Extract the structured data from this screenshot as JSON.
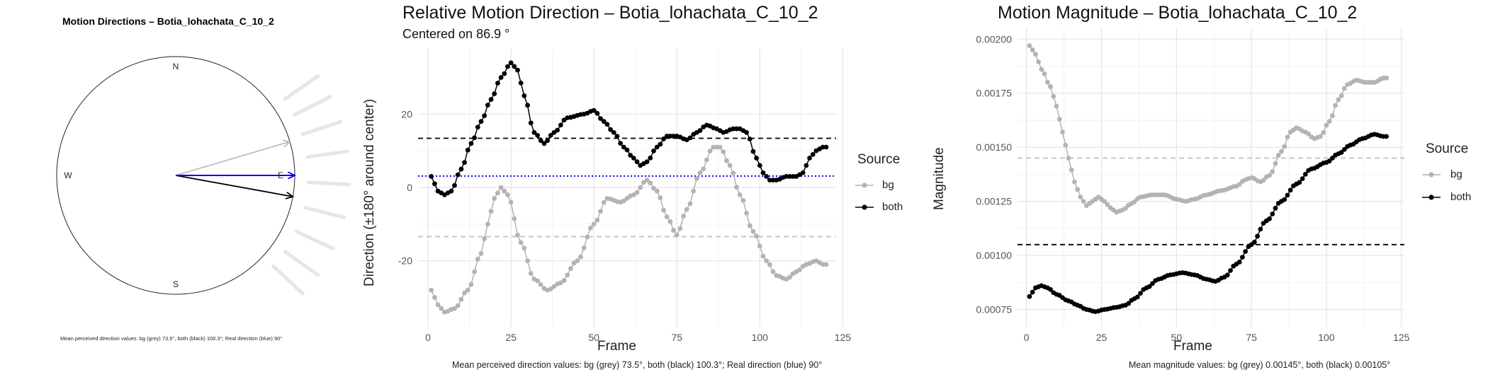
{
  "compass": {
    "title": "Motion Directions – Botia_lohachata_C_10_2",
    "north": "N",
    "south": "S",
    "east": "E",
    "west": "W",
    "caption": "Mean perceived direction values: bg (grey) 73.5°, both (black) 100.3°; Real direction (blue) 90°",
    "colors": {
      "bg": "#bdbdbd",
      "both": "#000000",
      "real": "#0000ff",
      "rays": "#e6e6e6"
    }
  },
  "direction": {
    "title": "Relative Motion Direction – Botia_lohachata_C_10_2",
    "subtitle": "Centered on  86.9 °",
    "ylabel": "Direction (±180° around center)",
    "xlabel": "Frame",
    "legend_title": "Source",
    "legend_bg": "bg",
    "legend_both": "both",
    "caption": "Mean perceived direction values: bg (grey) 73.5°, both (black) 100.3°; Real direction (blue) 90°"
  },
  "magnitude": {
    "title": "Motion Magnitude – Botia_lohachata_C_10_2",
    "ylabel": "Magnitude",
    "xlabel": "Frame",
    "legend_title": "Source",
    "legend_bg": "bg",
    "legend_both": "both",
    "caption": "Mean magnitude values: bg (grey) 0.00145°, both (black) 0.00105°"
  },
  "chart_data": [
    {
      "type": "compass",
      "title": "Motion Directions – Botia_lohachata_C_10_2",
      "arrows": [
        {
          "name": "bg",
          "angle_deg": 73.5,
          "color": "#bdbdbd"
        },
        {
          "name": "both",
          "angle_deg": 100.3,
          "color": "#000000"
        },
        {
          "name": "real",
          "angle_deg": 90,
          "color": "#0000ff"
        }
      ],
      "ray_angles_deg": [
        55,
        63,
        72,
        82,
        93,
        104,
        115,
        125,
        133
      ]
    },
    {
      "type": "line",
      "title": "Relative Motion Direction – Botia_lohachata_C_10_2",
      "xlabel": "Frame",
      "ylabel": "Direction (±180° around center)",
      "xlim": [
        -3,
        123
      ],
      "ylim": [
        -38,
        38
      ],
      "xticks": [
        0,
        25,
        50,
        75,
        100,
        125
      ],
      "yticks": [
        -20,
        0,
        20
      ],
      "hlines": [
        {
          "name": "both mean",
          "y": 13.4,
          "color": "#000000",
          "dash": "dashed"
        },
        {
          "name": "bg mean",
          "y": -13.4,
          "color": "#bdbdbd",
          "dash": "dashed"
        },
        {
          "name": "real",
          "y": 3.1,
          "color": "#0000ff",
          "dash": "dotted"
        }
      ],
      "series": [
        {
          "name": "bg",
          "color": "#b3b3b3",
          "keyframes": [
            [
              1,
              -28
            ],
            [
              3,
              -32
            ],
            [
              5,
              -34
            ],
            [
              8,
              -33
            ],
            [
              12,
              -28
            ],
            [
              16,
              -18
            ],
            [
              18,
              -10
            ],
            [
              20,
              -3
            ],
            [
              22,
              0
            ],
            [
              24,
              -2
            ],
            [
              28,
              -15
            ],
            [
              32,
              -25
            ],
            [
              36,
              -28
            ],
            [
              40,
              -26
            ],
            [
              45,
              -20
            ],
            [
              50,
              -10
            ],
            [
              54,
              -3
            ],
            [
              58,
              -4
            ],
            [
              62,
              -2
            ],
            [
              66,
              2
            ],
            [
              69,
              -1
            ],
            [
              72,
              -8
            ],
            [
              75,
              -13
            ],
            [
              78,
              -6
            ],
            [
              82,
              4
            ],
            [
              86,
              11
            ],
            [
              88,
              11
            ],
            [
              91,
              6
            ],
            [
              94,
              -2
            ],
            [
              98,
              -12
            ],
            [
              102,
              -20
            ],
            [
              105,
              -24
            ],
            [
              108,
              -25
            ],
            [
              111,
              -23
            ],
            [
              114,
              -21
            ],
            [
              117,
              -20
            ],
            [
              119,
              -21
            ]
          ]
        },
        {
          "name": "both",
          "color": "#000000",
          "keyframes": [
            [
              1,
              3
            ],
            [
              3,
              -1
            ],
            [
              5,
              -2
            ],
            [
              7,
              -1
            ],
            [
              10,
              5
            ],
            [
              13,
              12
            ],
            [
              16,
              18
            ],
            [
              19,
              24
            ],
            [
              22,
              30
            ],
            [
              25,
              34
            ],
            [
              27,
              32
            ],
            [
              29,
              25
            ],
            [
              32,
              15
            ],
            [
              35,
              12
            ],
            [
              38,
              15
            ],
            [
              42,
              19
            ],
            [
              47,
              20
            ],
            [
              50,
              21
            ],
            [
              53,
              18
            ],
            [
              56,
              15
            ],
            [
              59,
              11
            ],
            [
              62,
              8
            ],
            [
              64,
              6
            ],
            [
              66,
              7
            ],
            [
              69,
              11
            ],
            [
              72,
              14
            ],
            [
              75,
              14
            ],
            [
              78,
              13
            ],
            [
              81,
              15
            ],
            [
              84,
              17
            ],
            [
              87,
              16
            ],
            [
              89,
              15
            ],
            [
              92,
              16
            ],
            [
              94,
              16
            ],
            [
              96,
              15
            ],
            [
              99,
              8
            ],
            [
              101,
              4
            ],
            [
              103,
              2
            ],
            [
              105,
              2
            ],
            [
              108,
              3
            ],
            [
              111,
              3
            ],
            [
              113,
              4
            ],
            [
              115,
              8
            ],
            [
              117,
              10
            ],
            [
              119,
              11
            ]
          ]
        }
      ]
    },
    {
      "type": "line",
      "title": "Motion Magnitude – Botia_lohachata_C_10_2",
      "xlabel": "Frame",
      "ylabel": "Magnitude",
      "xlim": [
        -3,
        126
      ],
      "ylim": [
        0.00067,
        0.00205
      ],
      "xticks": [
        0,
        25,
        50,
        75,
        100,
        125
      ],
      "yticks": [
        0.00075,
        0.001,
        0.00125,
        0.0015,
        0.00175,
        0.002
      ],
      "hlines": [
        {
          "name": "bg mean",
          "y": 0.00145,
          "color": "#bdbdbd",
          "dash": "dashed"
        },
        {
          "name": "both mean",
          "y": 0.00105,
          "color": "#000000",
          "dash": "dashed"
        }
      ],
      "series": [
        {
          "name": "bg",
          "color": "#b3b3b3",
          "keyframes": [
            [
              1,
              0.00197
            ],
            [
              3,
              0.00193
            ],
            [
              5,
              0.00186
            ],
            [
              8,
              0.00178
            ],
            [
              10,
              0.00169
            ],
            [
              12,
              0.00157
            ],
            [
              14,
              0.00145
            ],
            [
              16,
              0.00134
            ],
            [
              18,
              0.00127
            ],
            [
              20,
              0.00123
            ],
            [
              22,
              0.00125
            ],
            [
              24,
              0.00127
            ],
            [
              26,
              0.00125
            ],
            [
              28,
              0.00122
            ],
            [
              30,
              0.0012
            ],
            [
              32,
              0.00121
            ],
            [
              35,
              0.00124
            ],
            [
              38,
              0.00127
            ],
            [
              42,
              0.00128
            ],
            [
              46,
              0.00128
            ],
            [
              50,
              0.00126
            ],
            [
              53,
              0.00125
            ],
            [
              56,
              0.00126
            ],
            [
              60,
              0.00128
            ],
            [
              65,
              0.0013
            ],
            [
              70,
              0.00132
            ],
            [
              73,
              0.00135
            ],
            [
              75,
              0.00136
            ],
            [
              78,
              0.00134
            ],
            [
              81,
              0.00137
            ],
            [
              85,
              0.00148
            ],
            [
              88,
              0.00157
            ],
            [
              90,
              0.00159
            ],
            [
              93,
              0.00157
            ],
            [
              96,
              0.00154
            ],
            [
              98,
              0.00155
            ],
            [
              101,
              0.00162
            ],
            [
              104,
              0.00172
            ],
            [
              107,
              0.00179
            ],
            [
              110,
              0.00181
            ],
            [
              113,
              0.0018
            ],
            [
              116,
              0.0018
            ],
            [
              119,
              0.00182
            ]
          ]
        },
        {
          "name": "both",
          "color": "#000000",
          "keyframes": [
            [
              1,
              0.00081
            ],
            [
              3,
              0.00085
            ],
            [
              5,
              0.00086
            ],
            [
              7,
              0.00085
            ],
            [
              10,
              0.00082
            ],
            [
              14,
              0.00079
            ],
            [
              17,
              0.00077
            ],
            [
              20,
              0.00075
            ],
            [
              23,
              0.00074
            ],
            [
              26,
              0.00075
            ],
            [
              30,
              0.00076
            ],
            [
              33,
              0.00077
            ],
            [
              36,
              0.0008
            ],
            [
              40,
              0.00085
            ],
            [
              44,
              0.00089
            ],
            [
              48,
              0.00091
            ],
            [
              52,
              0.00092
            ],
            [
              56,
              0.00091
            ],
            [
              60,
              0.00089
            ],
            [
              63,
              0.00088
            ],
            [
              66,
              0.0009
            ],
            [
              70,
              0.00096
            ],
            [
              75,
              0.00105
            ],
            [
              80,
              0.00116
            ],
            [
              85,
              0.00125
            ],
            [
              90,
              0.00133
            ],
            [
              95,
              0.0014
            ],
            [
              100,
              0.00143
            ],
            [
              104,
              0.00147
            ],
            [
              108,
              0.00151
            ],
            [
              112,
              0.00154
            ],
            [
              116,
              0.00156
            ],
            [
              119,
              0.00155
            ]
          ]
        }
      ]
    }
  ]
}
